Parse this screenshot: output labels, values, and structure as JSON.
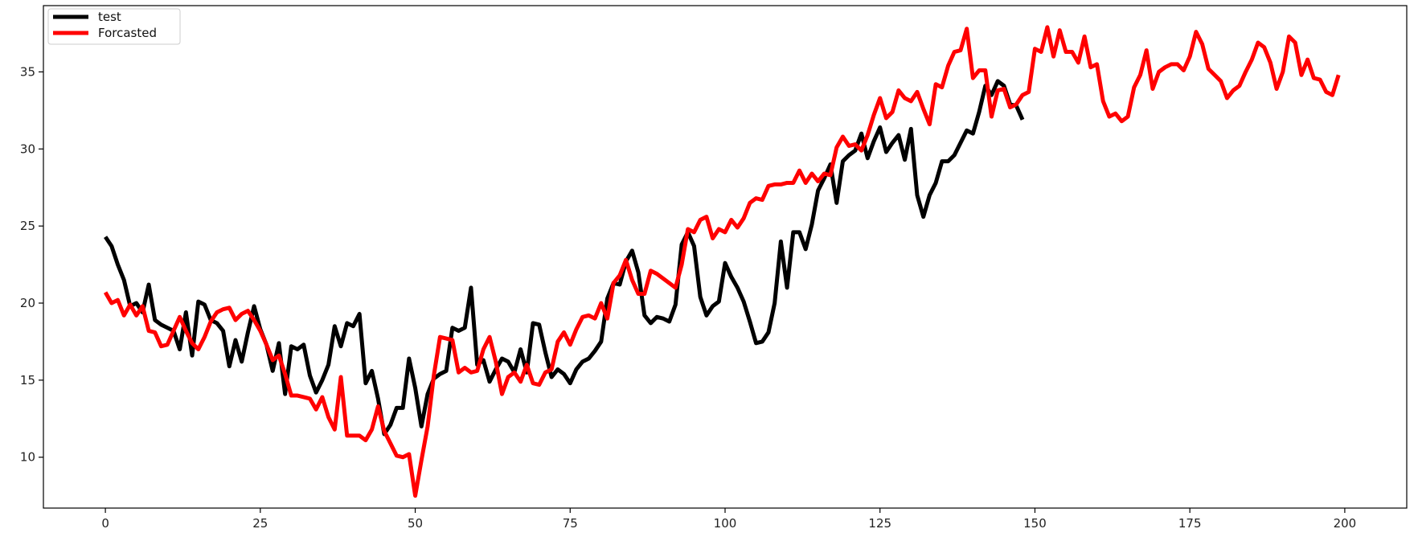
{
  "chart_data": {
    "type": "line",
    "title": "",
    "xlabel": "",
    "ylabel": "",
    "xlim": [
      -10,
      210
    ],
    "ylim": [
      6.7,
      39.3
    ],
    "xticks": [
      0,
      25,
      50,
      75,
      100,
      125,
      150,
      175,
      200
    ],
    "yticks": [
      10,
      15,
      20,
      25,
      30,
      35
    ],
    "grid": false,
    "legend_position": "top-left",
    "series": [
      {
        "name": "test",
        "color": "#000000",
        "x_start": 0,
        "values": [
          24.3,
          23.7,
          22.5,
          21.5,
          19.8,
          20.0,
          19.4,
          21.2,
          18.9,
          18.6,
          18.4,
          18.2,
          17.0,
          19.4,
          16.6,
          20.1,
          19.9,
          18.9,
          18.7,
          18.2,
          15.9,
          17.6,
          16.2,
          18.1,
          19.8,
          18.3,
          17.3,
          15.6,
          17.4,
          14.1,
          17.2,
          17.0,
          17.3,
          15.3,
          14.2,
          15.0,
          16.0,
          18.5,
          17.2,
          18.7,
          18.5,
          19.3,
          14.8,
          15.6,
          13.8,
          11.5,
          12.1,
          13.2,
          13.2,
          16.4,
          14.5,
          12.0,
          14.1,
          15.1,
          15.4,
          15.6,
          18.4,
          18.2,
          18.4,
          21.0,
          16.0,
          16.3,
          14.9,
          15.7,
          16.4,
          16.2,
          15.5,
          17.0,
          15.5,
          18.7,
          18.6,
          16.8,
          15.2,
          15.7,
          15.4,
          14.8,
          15.7,
          16.2,
          16.4,
          16.9,
          17.5,
          20.3,
          21.3,
          21.2,
          22.7,
          23.4,
          22.0,
          19.2,
          18.7,
          19.1,
          19.0,
          18.8,
          19.9,
          23.8,
          24.6,
          23.7,
          20.4,
          19.2,
          19.8,
          20.1,
          22.6,
          21.7,
          21.0,
          20.1,
          18.8,
          17.4,
          17.5,
          18.1,
          20.0,
          24.0,
          21.0,
          24.6,
          24.6,
          23.5,
          25.1,
          27.3,
          28.1,
          29.0,
          26.5,
          29.2,
          29.6,
          29.9,
          31.0,
          29.4,
          30.5,
          31.4,
          29.8,
          30.4,
          30.9,
          29.3,
          31.3,
          27.0,
          25.6,
          27.0,
          27.8,
          29.2,
          29.2,
          29.6,
          30.4,
          31.2,
          31.0,
          32.4,
          34.1,
          33.5,
          34.4,
          34.1,
          32.9,
          32.8,
          31.9
        ]
      },
      {
        "name": "Forcasted",
        "color": "#ff0000",
        "x_start": 0,
        "values": [
          20.7,
          20.0,
          20.2,
          19.2,
          19.9,
          19.2,
          19.8,
          18.2,
          18.1,
          17.2,
          17.3,
          18.2,
          19.1,
          18.2,
          17.4,
          17.0,
          17.8,
          18.8,
          19.4,
          19.6,
          19.7,
          18.9,
          19.3,
          19.5,
          18.9,
          18.2,
          17.3,
          16.3,
          16.6,
          15.4,
          14.0,
          14.0,
          13.9,
          13.8,
          13.1,
          13.9,
          12.6,
          11.8,
          15.2,
          11.4,
          11.4,
          11.4,
          11.1,
          11.8,
          13.3,
          11.7,
          10.9,
          10.1,
          10.0,
          10.2,
          7.5,
          9.8,
          12.0,
          15.3,
          17.8,
          17.7,
          17.6,
          15.5,
          15.8,
          15.5,
          15.6,
          17.0,
          17.8,
          16.2,
          14.1,
          15.2,
          15.5,
          14.9,
          16.0,
          14.8,
          14.7,
          15.5,
          15.7,
          17.5,
          18.1,
          17.3,
          18.3,
          19.1,
          19.2,
          19.0,
          20.0,
          19.0,
          21.3,
          21.8,
          22.8,
          21.5,
          20.6,
          20.6,
          22.1,
          21.9,
          21.6,
          21.3,
          21.0,
          22.5,
          24.8,
          24.6,
          25.4,
          25.6,
          24.2,
          24.8,
          24.6,
          25.4,
          24.9,
          25.5,
          26.5,
          26.8,
          26.7,
          27.6,
          27.7,
          27.7,
          27.8,
          27.8,
          28.6,
          27.8,
          28.4,
          27.9,
          28.4,
          28.3,
          30.1,
          30.8,
          30.2,
          30.3,
          29.9,
          30.9,
          32.2,
          33.3,
          32.0,
          32.4,
          33.8,
          33.3,
          33.1,
          33.7,
          32.6,
          31.6,
          34.2,
          34.0,
          35.4,
          36.3,
          36.4,
          37.8,
          34.6,
          35.1,
          35.1,
          32.1,
          33.8,
          33.9,
          32.7,
          32.9,
          33.5,
          33.7,
          36.5,
          36.3,
          37.9,
          36.0,
          37.7,
          36.3,
          36.3,
          35.6,
          37.3,
          35.3,
          35.5,
          33.1,
          32.1,
          32.3,
          31.8,
          32.1,
          34.0,
          34.8,
          36.4,
          33.9,
          35.0,
          35.3,
          35.5,
          35.5,
          35.1,
          36.0,
          37.6,
          36.8,
          35.2,
          34.8,
          34.4,
          33.3,
          33.8,
          34.1,
          35.0,
          35.8,
          36.9,
          36.6,
          35.6,
          33.9,
          35.0,
          37.3,
          36.9,
          34.8,
          35.8,
          34.6,
          34.5,
          33.7,
          33.5,
          34.8
        ]
      }
    ]
  }
}
